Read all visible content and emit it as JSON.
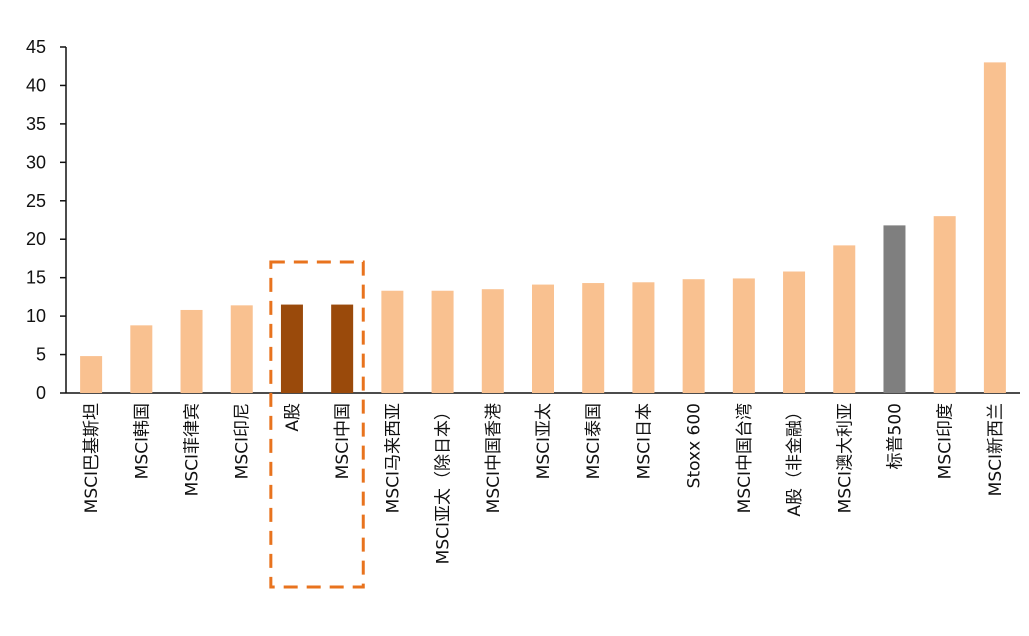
{
  "chart_data": {
    "type": "bar",
    "title": "",
    "xlabel": "",
    "ylabel": "",
    "ylim": [
      0,
      45
    ],
    "y_ticks": [
      "0",
      "5",
      "10",
      "15",
      "20",
      "25",
      "30",
      "35",
      "40",
      "45"
    ],
    "grid": false,
    "categories": [
      "MSCI巴基斯坦",
      "MSCI韩国",
      "MSCI菲律宾",
      "MSCI印尼",
      "A股",
      "MSCI中国",
      "MSCI马来西亚",
      "MSCI亚太（除日本）",
      "MSCI中国香港",
      "MSCI亚太",
      "MSCI泰国",
      "MSCI日本",
      "Stoxx 600",
      "MSCI中国台湾",
      "A股（非金融）",
      "MSCI澳大利亚",
      "标普500",
      "MSCI印度",
      "MSCI新西兰"
    ],
    "values": [
      4.8,
      8.8,
      10.8,
      11.4,
      11.5,
      11.5,
      13.3,
      13.3,
      13.5,
      14.1,
      14.3,
      14.4,
      14.8,
      14.9,
      15.8,
      19.2,
      21.8,
      23.0,
      43.0
    ],
    "bar_colors": [
      "#F9C190",
      "#F9C190",
      "#F9C190",
      "#F9C190",
      "#9A4A0B",
      "#9A4A0B",
      "#F9C190",
      "#F9C190",
      "#F9C190",
      "#F9C190",
      "#F9C190",
      "#F9C190",
      "#F9C190",
      "#F9C190",
      "#F9C190",
      "#F9C190",
      "#7F7F7F",
      "#F9C190",
      "#F9C190"
    ],
    "highlight_box_color": "#E8731E",
    "highlight_categories": [
      "A股",
      "MSCI中国"
    ]
  }
}
